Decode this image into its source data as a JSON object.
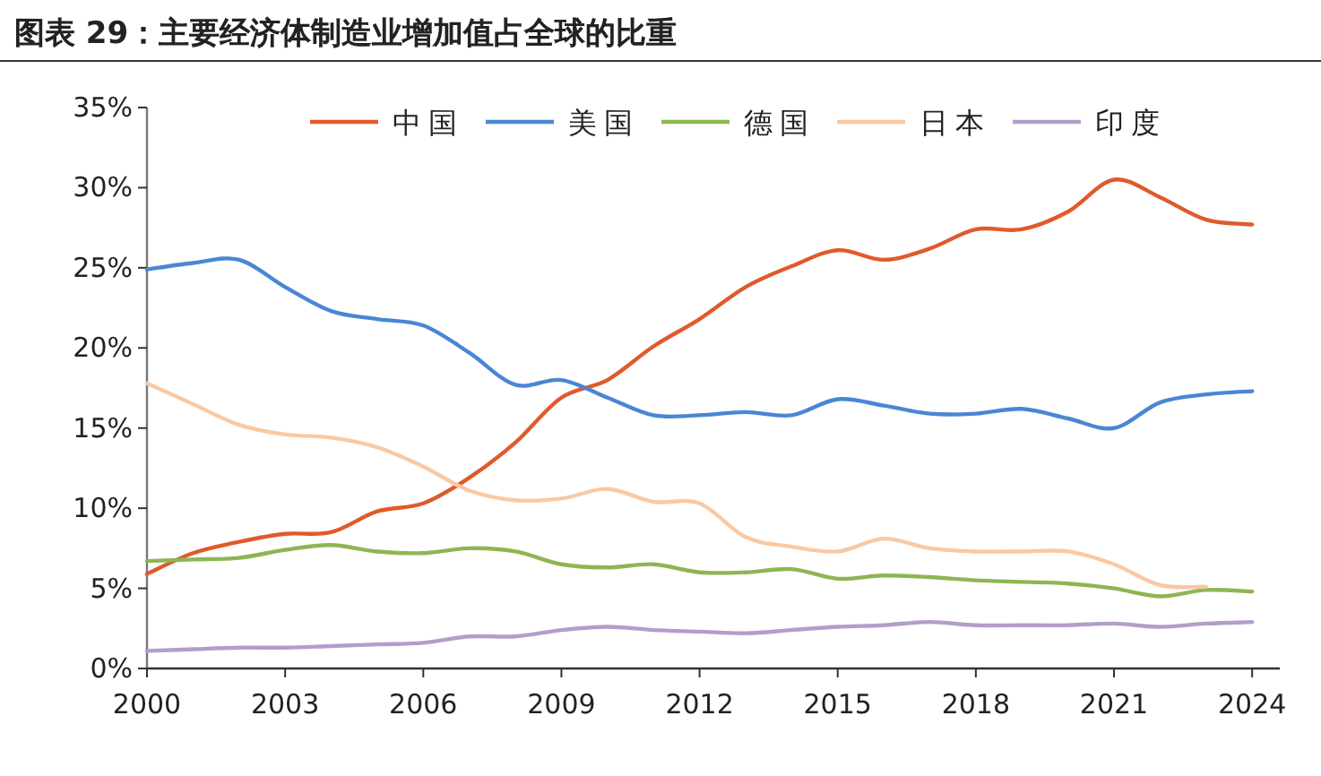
{
  "chart_data": {
    "type": "line",
    "title": "图表 29：主要经济体制造业增加值占全球的比重",
    "x": [
      2000,
      2001,
      2002,
      2003,
      2004,
      2005,
      2006,
      2007,
      2008,
      2009,
      2010,
      2011,
      2012,
      2013,
      2014,
      2015,
      2016,
      2017,
      2018,
      2019,
      2020,
      2021,
      2022,
      2023,
      2024
    ],
    "series": [
      {
        "name": "中国",
        "color": "#e05a2b",
        "values": [
          5.9,
          7.2,
          7.9,
          8.4,
          8.5,
          9.8,
          10.3,
          11.9,
          14.1,
          16.9,
          18.0,
          20.1,
          21.8,
          23.8,
          25.1,
          26.1,
          25.5,
          26.2,
          27.4,
          27.4,
          28.5,
          30.5,
          29.4,
          28.0,
          27.7
        ]
      },
      {
        "name": "美国",
        "color": "#4a86d4",
        "values": [
          24.9,
          25.3,
          25.5,
          23.8,
          22.3,
          21.8,
          21.4,
          19.7,
          17.7,
          18.0,
          16.9,
          15.8,
          15.8,
          16.0,
          15.8,
          16.8,
          16.4,
          15.9,
          15.9,
          16.2,
          15.6,
          15.0,
          16.6,
          17.1,
          17.3
        ]
      },
      {
        "name": "德国",
        "color": "#8db653",
        "values": [
          6.7,
          6.8,
          6.9,
          7.4,
          7.7,
          7.3,
          7.2,
          7.5,
          7.3,
          6.5,
          6.3,
          6.5,
          6.0,
          6.0,
          6.2,
          5.6,
          5.8,
          5.7,
          5.5,
          5.4,
          5.3,
          5.0,
          4.5,
          4.9,
          4.8
        ]
      },
      {
        "name": "日本",
        "color": "#f9c9a3",
        "values": [
          17.8,
          16.5,
          15.2,
          14.6,
          14.4,
          13.8,
          12.6,
          11.1,
          10.5,
          10.6,
          11.2,
          10.4,
          10.3,
          8.2,
          7.6,
          7.3,
          8.1,
          7.5,
          7.3,
          7.3,
          7.3,
          6.5,
          5.2,
          5.1,
          null
        ]
      },
      {
        "name": "印度",
        "color": "#b39dcb",
        "values": [
          1.1,
          1.2,
          1.3,
          1.3,
          1.4,
          1.5,
          1.6,
          2.0,
          2.0,
          2.4,
          2.6,
          2.4,
          2.3,
          2.2,
          2.4,
          2.6,
          2.7,
          2.9,
          2.7,
          2.7,
          2.7,
          2.8,
          2.6,
          2.8,
          2.9
        ]
      }
    ],
    "xlim": [
      2000,
      2024.6
    ],
    "ylim": [
      0,
      35
    ],
    "xticks": [
      2000,
      2003,
      2006,
      2009,
      2012,
      2015,
      2018,
      2021,
      2024
    ],
    "yticks": [
      {
        "value": 0,
        "label": "0%"
      },
      {
        "value": 5,
        "label": "5%"
      },
      {
        "value": 10,
        "label": "10%"
      },
      {
        "value": 15,
        "label": "15%"
      },
      {
        "value": 20,
        "label": "20%"
      },
      {
        "value": 25,
        "label": "25%"
      },
      {
        "value": 30,
        "label": "30%"
      },
      {
        "value": 35,
        "label": "35%"
      }
    ],
    "legend": "top"
  }
}
